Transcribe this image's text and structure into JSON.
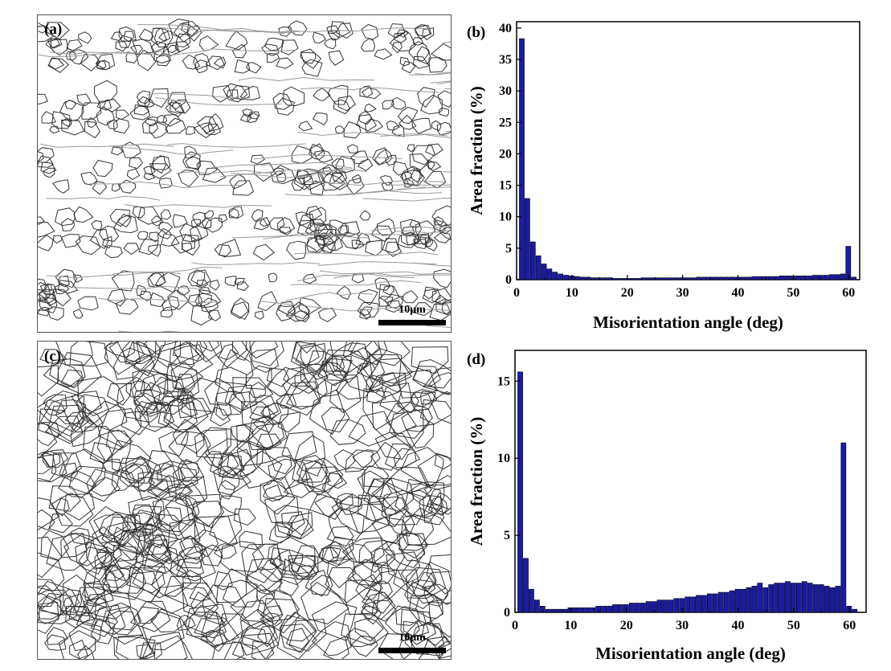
{
  "figure": {
    "panel_a": {
      "label": "(a)",
      "scale_bar": "10μm"
    },
    "panel_c": {
      "label": "(c)",
      "scale_bar": "10μm"
    }
  },
  "chart_data": [
    {
      "panel": "(b)",
      "type": "bar",
      "xlabel": "Misorientation angle (deg)",
      "ylabel": "Area fraction (%)",
      "xlim": [
        0,
        62
      ],
      "ylim": [
        0,
        41
      ],
      "xticks": [
        0,
        10,
        20,
        30,
        40,
        50,
        60
      ],
      "yticks": [
        0,
        5,
        10,
        15,
        20,
        25,
        30,
        35,
        40
      ],
      "bin_width": 1,
      "x": [
        1,
        2,
        3,
        4,
        5,
        6,
        7,
        8,
        9,
        10,
        11,
        12,
        13,
        14,
        15,
        16,
        17,
        18,
        19,
        20,
        21,
        22,
        23,
        24,
        25,
        26,
        27,
        28,
        29,
        30,
        31,
        32,
        33,
        34,
        35,
        36,
        37,
        38,
        39,
        40,
        41,
        42,
        43,
        44,
        45,
        46,
        47,
        48,
        49,
        50,
        51,
        52,
        53,
        54,
        55,
        56,
        57,
        58,
        59,
        60,
        61
      ],
      "values": [
        38.3,
        12.9,
        6.0,
        3.8,
        2.5,
        1.7,
        1.2,
        0.9,
        0.7,
        0.6,
        0.5,
        0.4,
        0.4,
        0.3,
        0.3,
        0.3,
        0.3,
        0.2,
        0.2,
        0.2,
        0.2,
        0.2,
        0.3,
        0.3,
        0.3,
        0.3,
        0.3,
        0.3,
        0.3,
        0.3,
        0.3,
        0.3,
        0.4,
        0.4,
        0.4,
        0.4,
        0.4,
        0.4,
        0.4,
        0.4,
        0.4,
        0.4,
        0.5,
        0.5,
        0.5,
        0.5,
        0.5,
        0.6,
        0.6,
        0.6,
        0.6,
        0.6,
        0.6,
        0.7,
        0.7,
        0.7,
        0.8,
        0.8,
        0.9,
        5.3,
        0.4
      ],
      "color": "#1a1aa8",
      "grid": false
    },
    {
      "panel": "(d)",
      "type": "bar",
      "xlabel": "Misorientation angle (deg)",
      "ylabel": "Area fraction (%)",
      "xlim": [
        0,
        63
      ],
      "ylim": [
        0,
        17
      ],
      "xticks": [
        0,
        10,
        20,
        30,
        40,
        50,
        60
      ],
      "yticks": [
        0,
        5,
        10,
        15
      ],
      "bin_width": 1,
      "x": [
        1,
        2,
        3,
        4,
        5,
        6,
        7,
        8,
        9,
        10,
        11,
        12,
        13,
        14,
        15,
        16,
        17,
        18,
        19,
        20,
        21,
        22,
        23,
        24,
        25,
        26,
        27,
        28,
        29,
        30,
        31,
        32,
        33,
        34,
        35,
        36,
        37,
        38,
        39,
        40,
        41,
        42,
        43,
        44,
        45,
        46,
        47,
        48,
        49,
        50,
        51,
        52,
        53,
        54,
        55,
        56,
        57,
        58,
        59,
        60,
        61
      ],
      "values": [
        15.6,
        3.5,
        1.5,
        0.8,
        0.4,
        0.2,
        0.2,
        0.2,
        0.2,
        0.3,
        0.3,
        0.3,
        0.3,
        0.3,
        0.4,
        0.4,
        0.4,
        0.5,
        0.5,
        0.5,
        0.6,
        0.6,
        0.6,
        0.7,
        0.7,
        0.8,
        0.8,
        0.8,
        0.9,
        0.9,
        1.0,
        1.0,
        1.1,
        1.1,
        1.2,
        1.2,
        1.3,
        1.3,
        1.4,
        1.5,
        1.5,
        1.6,
        1.7,
        1.9,
        1.6,
        1.8,
        1.9,
        1.9,
        2.0,
        1.9,
        1.9,
        2.0,
        1.9,
        1.8,
        1.8,
        1.7,
        1.6,
        1.7,
        11.0,
        0.4,
        0.2
      ],
      "color": "#1a1aa8",
      "grid": false
    }
  ]
}
